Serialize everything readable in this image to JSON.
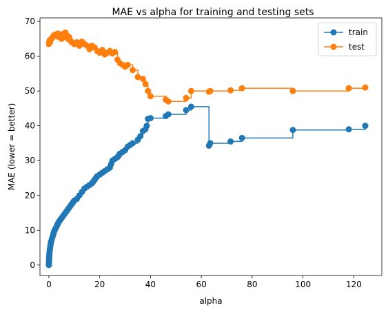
{
  "chart_data": {
    "type": "line",
    "drawstyle": "steps-post",
    "marker": "o",
    "title": "MAE vs alpha for training and testing sets",
    "xlabel": "alpha",
    "ylabel": "MAE (lower = better)",
    "xlim": [
      -3.5,
      131
    ],
    "ylim": [
      -3,
      71
    ],
    "xticks": [
      0,
      20,
      40,
      60,
      80,
      100,
      120
    ],
    "yticks": [
      0,
      10,
      20,
      30,
      40,
      50,
      60,
      70
    ],
    "legend": "top-right",
    "series": [
      {
        "name": "train",
        "color": "#1f77b4",
        "x": [
          0,
          0.02,
          0.05,
          0.08,
          0.1,
          0.15,
          0.2,
          0.25,
          0.3,
          0.4,
          0.5,
          0.6,
          0.7,
          0.8,
          1.0,
          1.2,
          1.4,
          1.6,
          1.8,
          2.0,
          2.3,
          2.6,
          3.0,
          3.3,
          3.6,
          4.0,
          4.5,
          5.0,
          5.5,
          6.0,
          6.5,
          7.0,
          7.5,
          8.0,
          8.5,
          9.0,
          9.5,
          10.0,
          11.0,
          12.0,
          13.0,
          14.0,
          15.0,
          16.0,
          17.0,
          17.5,
          18.0,
          18.5,
          19.0,
          20.0,
          21.0,
          22.0,
          23.0,
          24.0,
          24.5,
          25.0,
          26.0,
          27.0,
          27.5,
          28.0,
          29.0,
          30.0,
          31.0,
          32.0,
          33.0,
          35.0,
          36.0,
          37.0,
          38.0,
          38.5,
          39.0,
          40.0,
          46.0,
          47.0,
          54.0,
          56.0,
          63.0,
          63.5,
          71.5,
          76.0,
          96.0,
          118.0,
          124.5
        ],
        "y": [
          0,
          0.5,
          1.0,
          1.5,
          2.0,
          2.5,
          3.0,
          3.5,
          4.0,
          4.5,
          5.0,
          5.5,
          6.0,
          6.5,
          7.0,
          7.5,
          8.0,
          8.5,
          9.0,
          9.5,
          10.0,
          10.5,
          11.0,
          11.5,
          12.0,
          12.5,
          13.0,
          13.5,
          14.0,
          14.5,
          15.0,
          15.5,
          16.0,
          16.5,
          17.0,
          17.5,
          18.0,
          18.5,
          19.0,
          20.0,
          21.0,
          22.0,
          22.5,
          23.0,
          23.5,
          24.0,
          24.5,
          25.0,
          25.5,
          26.0,
          26.5,
          27.0,
          27.5,
          28.0,
          29.0,
          30.0,
          30.5,
          31.0,
          31.5,
          32.0,
          32.5,
          33.0,
          34.0,
          34.5,
          35.0,
          36.0,
          37.0,
          38.5,
          39.0,
          40.0,
          42.0,
          42.2,
          42.8,
          43.3,
          44.5,
          45.5,
          34.3,
          35.0,
          35.5,
          36.5,
          38.8,
          39.0,
          40.0
        ]
      },
      {
        "name": "test",
        "color": "#ff7f0e",
        "x": [
          0,
          0.1,
          0.2,
          0.3,
          0.5,
          0.8,
          1.0,
          1.5,
          2.0,
          2.5,
          3.0,
          3.5,
          4.0,
          4.5,
          5.0,
          5.5,
          6.0,
          6.5,
          7.0,
          7.5,
          8.0,
          8.5,
          9.0,
          10.0,
          11.0,
          12.0,
          13.0,
          14.0,
          15.0,
          16.0,
          17.0,
          18.0,
          19.0,
          20.0,
          21.0,
          22.0,
          23.0,
          24.0,
          25.0,
          26.0,
          27.0,
          28.0,
          29.0,
          30.0,
          31.0,
          33.0,
          35.0,
          37.0,
          38.0,
          39.0,
          40.0,
          46.0,
          47.0,
          54.0,
          56.0,
          63.0,
          63.5,
          71.5,
          76.0,
          96.0,
          118.0,
          124.5
        ],
        "y": [
          63.5,
          64.0,
          63.8,
          64.5,
          64.0,
          64.8,
          65.0,
          65.5,
          66.0,
          66.2,
          65.8,
          66.5,
          65.5,
          66.0,
          65.0,
          66.4,
          65.5,
          66.8,
          66.0,
          65.0,
          65.5,
          64.5,
          64.0,
          63.5,
          64.0,
          63.0,
          64.2,
          63.5,
          63.0,
          62.0,
          63.0,
          62.5,
          61.5,
          61.0,
          61.8,
          60.5,
          61.0,
          61.5,
          60.8,
          61.2,
          59.0,
          58.0,
          57.5,
          57.0,
          57.5,
          56.0,
          54.0,
          53.5,
          52.0,
          50.0,
          48.5,
          47.5,
          47.0,
          48.0,
          50.0,
          49.8,
          50.0,
          50.2,
          50.8,
          50.0,
          50.8,
          51.0
        ]
      }
    ]
  }
}
